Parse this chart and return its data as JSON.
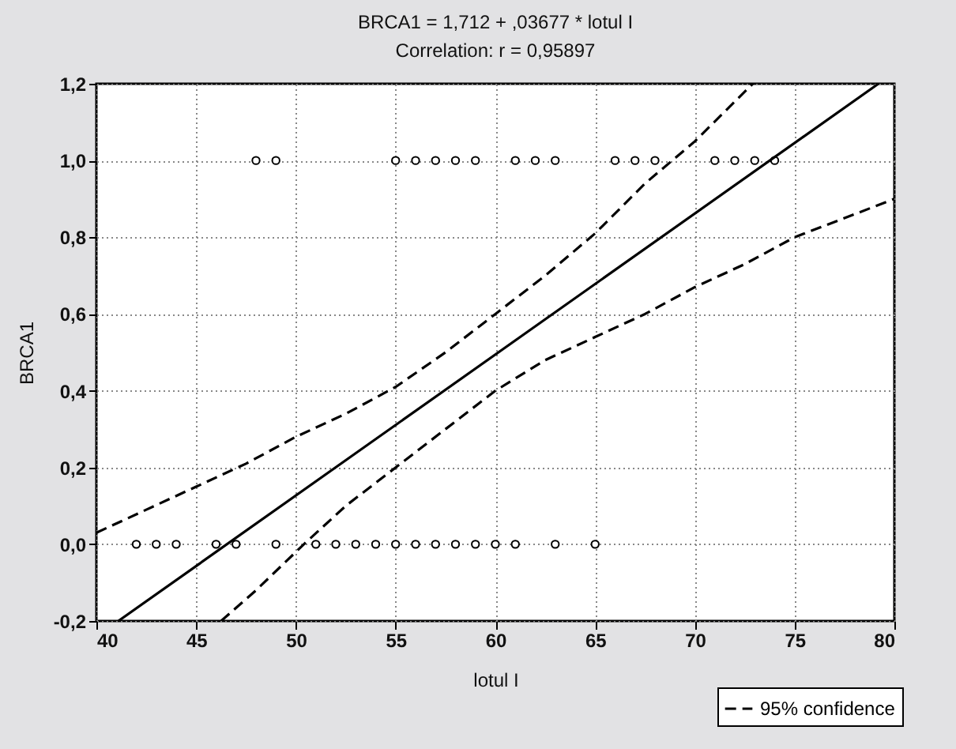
{
  "chart_data": {
    "type": "scatter",
    "title": "BRCA1 = 1,712 + ,03677 * lotul I",
    "subtitle": "Correlation: r = 0,95897",
    "xlabel": "lotul I",
    "ylabel": "BRCA1",
    "xlim": [
      40,
      80
    ],
    "xticks": [
      40,
      45,
      50,
      55,
      60,
      65,
      70,
      75,
      80
    ],
    "ylim": [
      -0.2,
      1.2
    ],
    "yticks": [
      {
        "value": -0.2,
        "label": "-0,2"
      },
      {
        "value": 0,
        "label": "0,0"
      },
      {
        "value": 0.2,
        "label": "0,2"
      },
      {
        "value": 0.4,
        "label": "0,4"
      },
      {
        "value": 0.6,
        "label": "0,6"
      },
      {
        "value": 0.8,
        "label": "0,8"
      },
      {
        "value": 1,
        "label": "1,0"
      },
      {
        "value": 1.2,
        "label": "1,2"
      }
    ],
    "grid": true,
    "legend": "bottom right",
    "series": [
      {
        "color": "#000000",
        "marker": "circle",
        "x": [
          42,
          43,
          44,
          46,
          47,
          49,
          51,
          52,
          53,
          54,
          55,
          56,
          57,
          58,
          59,
          60,
          61,
          63,
          65,
          48,
          49,
          55,
          56,
          57,
          58,
          59,
          61,
          62,
          63,
          66,
          67,
          68,
          71,
          72,
          73,
          74
        ],
        "values": [
          0,
          0,
          0,
          0,
          0,
          0,
          0,
          0,
          0,
          0,
          0,
          0,
          0,
          0,
          0,
          0,
          0,
          0,
          0,
          1,
          1,
          1,
          1,
          1,
          1,
          1,
          1,
          1,
          1,
          1,
          1,
          1,
          1,
          1,
          1,
          1
        ]
      },
      {
        "type": "line",
        "color": "#000000",
        "line_style": "solid",
        "x": [
          41.1,
          79.2
        ],
        "values": [
          -0.2,
          1.2
        ]
      },
      {
        "type": "line",
        "name": "95% confidence",
        "color": "#000000",
        "line_style": "dashed",
        "x": [
          40,
          42.5,
          45,
          47.5,
          50,
          52.5,
          55,
          57.5,
          60,
          62.5,
          65,
          67.5,
          70,
          72.9
        ],
        "values": [
          0.03,
          0.09,
          0.15,
          0.21,
          0.28,
          0.34,
          0.41,
          0.5,
          0.6,
          0.7,
          0.81,
          0.94,
          1.05,
          1.2
        ]
      },
      {
        "type": "line",
        "color": "#000000",
        "line_style": "dashed",
        "x": [
          46.25,
          48,
          50.4,
          52.5,
          55,
          57.5,
          60,
          62.5,
          65,
          67.5,
          70,
          72.5,
          75,
          77.5,
          80
        ],
        "values": [
          -0.2,
          -0.12,
          0,
          0.1,
          0.2,
          0.3,
          0.4,
          0.48,
          0.54,
          0.6,
          0.67,
          0.73,
          0.8,
          0.85,
          0.9
        ]
      }
    ]
  }
}
